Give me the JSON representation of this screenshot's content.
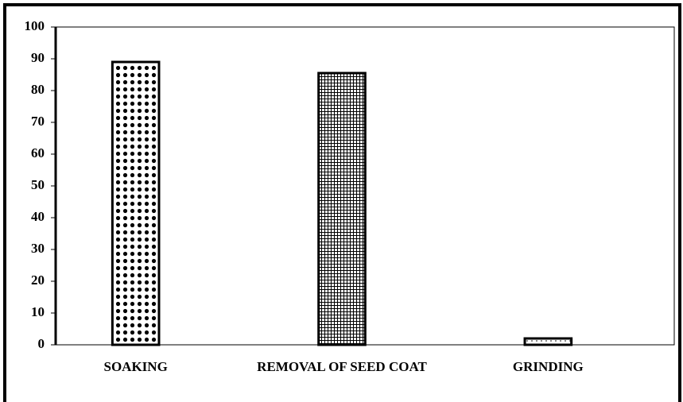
{
  "chart_data": {
    "type": "bar",
    "categories": [
      "SOAKING",
      "REMOVAL OF SEED COAT",
      "GRINDING"
    ],
    "values": [
      89,
      85.5,
      2
    ],
    "patterns": [
      "dots",
      "grid",
      "sparse"
    ],
    "color": "#000000",
    "ylim": [
      0,
      100
    ],
    "yticks": [
      0,
      10,
      20,
      30,
      40,
      50,
      60,
      70,
      80,
      90,
      100
    ],
    "grid": false
  }
}
